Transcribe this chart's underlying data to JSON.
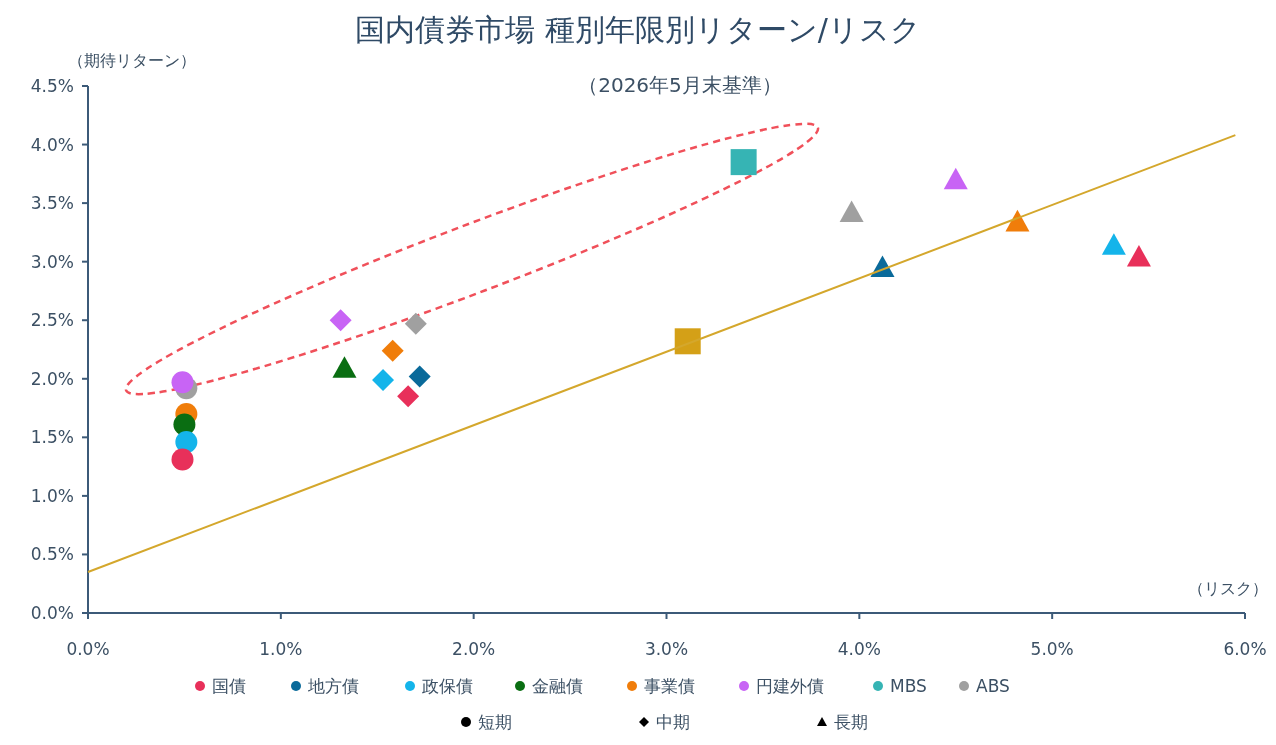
{
  "chart_data": {
    "type": "scatter",
    "title": "国内債券市場 種別年限別リターン/リスク",
    "subtitle": "（2026年5月末基準）",
    "xlabel": "（リスク）",
    "ylabel": "（期待リターン）",
    "xlim": [
      0,
      6
    ],
    "ylim": [
      0,
      4.5
    ],
    "xticks": [
      {
        "value": 0,
        "label": "0.0%"
      },
      {
        "value": 1,
        "label": "1.0%"
      },
      {
        "value": 2,
        "label": "2.0%"
      },
      {
        "value": 3,
        "label": "3.0%"
      },
      {
        "value": 4,
        "label": "4.0%"
      },
      {
        "value": 5,
        "label": "5.0%"
      },
      {
        "value": 6,
        "label": "6.0%"
      }
    ],
    "yticks": [
      {
        "value": 0,
        "label": "0.0%"
      },
      {
        "value": 0.5,
        "label": "0.5%"
      },
      {
        "value": 1,
        "label": "1.0%"
      },
      {
        "value": 1.5,
        "label": "1.5%"
      },
      {
        "value": 2,
        "label": "2.0%"
      },
      {
        "value": 2.5,
        "label": "2.5%"
      },
      {
        "value": 3,
        "label": "3.0%"
      },
      {
        "value": 3.5,
        "label": "3.5%"
      },
      {
        "value": 4,
        "label": "4.0%"
      },
      {
        "value": 4.5,
        "label": "4.5%"
      }
    ],
    "grid": false,
    "legend": "bottom",
    "series": [
      {
        "type": "line",
        "color": "#d4a72c",
        "marker": "none",
        "x": [
          0,
          5.95
        ],
        "values": [
          0.35,
          4.08
        ]
      },
      {
        "name": "国債",
        "color": "#e8305a",
        "marker": [
          "circle",
          "diamond",
          "triangle"
        ],
        "x": [
          0.49,
          1.66,
          5.45
        ],
        "values": [
          1.31,
          1.85,
          3.04
        ]
      },
      {
        "name": "地方債",
        "color": "#0a6a9a",
        "marker": [
          "diamond",
          "triangle"
        ],
        "x": [
          1.72,
          4.12
        ],
        "values": [
          2.02,
          2.95
        ]
      },
      {
        "name": "政保債",
        "color": "#14b4ea",
        "marker": [
          "circle",
          "diamond",
          "triangle"
        ],
        "x": [
          0.51,
          1.53,
          5.32
        ],
        "values": [
          1.46,
          1.99,
          3.14
        ]
      },
      {
        "name": "金融債",
        "color": "#0a6e12",
        "marker": [
          "circle",
          "triangle"
        ],
        "x": [
          0.5,
          1.33
        ],
        "values": [
          1.61,
          2.09
        ]
      },
      {
        "name": "事業債",
        "color": "#f07d0a",
        "marker": [
          "circle",
          "diamond",
          "triangle"
        ],
        "x": [
          0.51,
          1.58,
          4.82
        ],
        "values": [
          1.7,
          2.24,
          3.34
        ]
      },
      {
        "name": "円建外債",
        "color": "#c864f5",
        "marker": [
          "circle",
          "diamond",
          "triangle"
        ],
        "x": [
          0.49,
          1.31,
          4.5
        ],
        "values": [
          1.97,
          2.5,
          3.7
        ]
      },
      {
        "name": "MBS",
        "color": "#36b4b4",
        "marker": [
          "square"
        ],
        "x": [
          3.4
        ],
        "values": [
          3.85
        ]
      },
      {
        "name": "ABS",
        "color": "#a0a0a0",
        "marker": [
          "circle",
          "diamond",
          "triangle"
        ],
        "x": [
          0.51,
          1.7,
          3.96
        ],
        "values": [
          1.92,
          2.47,
          3.42
        ]
      },
      {
        "color": "#d4a017",
        "marker": [
          "square"
        ],
        "x": [
          3.11
        ],
        "values": [
          2.32
        ]
      },
      {
        "name": "短期",
        "color": "#000000",
        "marker": "circle"
      },
      {
        "name": "中期",
        "color": "#000000",
        "marker": "diamond"
      },
      {
        "name": "長期",
        "color": "#000000",
        "marker": "triangle"
      }
    ]
  }
}
